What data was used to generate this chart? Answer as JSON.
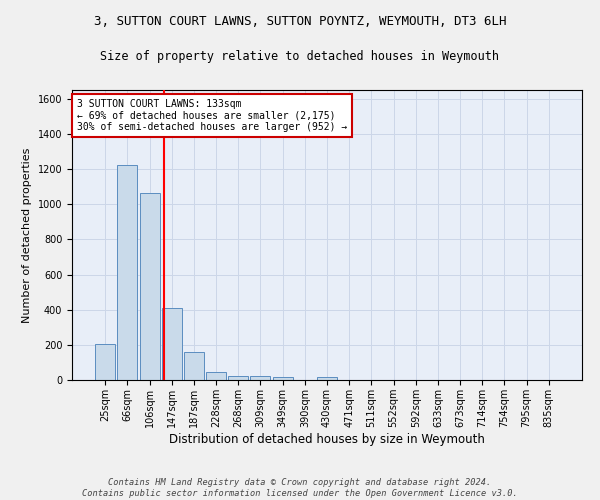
{
  "title": "3, SUTTON COURT LAWNS, SUTTON POYNTZ, WEYMOUTH, DT3 6LH",
  "subtitle": "Size of property relative to detached houses in Weymouth",
  "xlabel": "Distribution of detached houses by size in Weymouth",
  "ylabel": "Number of detached properties",
  "categories": [
    "25sqm",
    "66sqm",
    "106sqm",
    "147sqm",
    "187sqm",
    "228sqm",
    "268sqm",
    "309sqm",
    "349sqm",
    "390sqm",
    "430sqm",
    "471sqm",
    "511sqm",
    "552sqm",
    "592sqm",
    "633sqm",
    "673sqm",
    "714sqm",
    "754sqm",
    "795sqm",
    "835sqm"
  ],
  "values": [
    205,
    1225,
    1065,
    410,
    160,
    45,
    25,
    22,
    15,
    0,
    15,
    0,
    0,
    0,
    0,
    0,
    0,
    0,
    0,
    0,
    0
  ],
  "bar_color": "#c9daea",
  "bar_edge_color": "#5b8dc0",
  "red_line_x": 2.67,
  "annotation_line1": "3 SUTTON COURT LAWNS: 133sqm",
  "annotation_line2": "← 69% of detached houses are smaller (2,175)",
  "annotation_line3": "30% of semi-detached houses are larger (952) →",
  "annotation_box_color": "#ffffff",
  "annotation_box_edge": "#cc0000",
  "ylim": [
    0,
    1650
  ],
  "yticks": [
    0,
    200,
    400,
    600,
    800,
    1000,
    1200,
    1400,
    1600
  ],
  "grid_color": "#ccd6e8",
  "background_color": "#e8eef8",
  "fig_background": "#f0f0f0",
  "footnote": "Contains HM Land Registry data © Crown copyright and database right 2024.\nContains public sector information licensed under the Open Government Licence v3.0.",
  "title_fontsize": 9,
  "subtitle_fontsize": 8.5,
  "ylabel_fontsize": 8,
  "xlabel_fontsize": 8.5,
  "tick_fontsize": 7,
  "annotation_fontsize": 7,
  "footnote_fontsize": 6.2
}
